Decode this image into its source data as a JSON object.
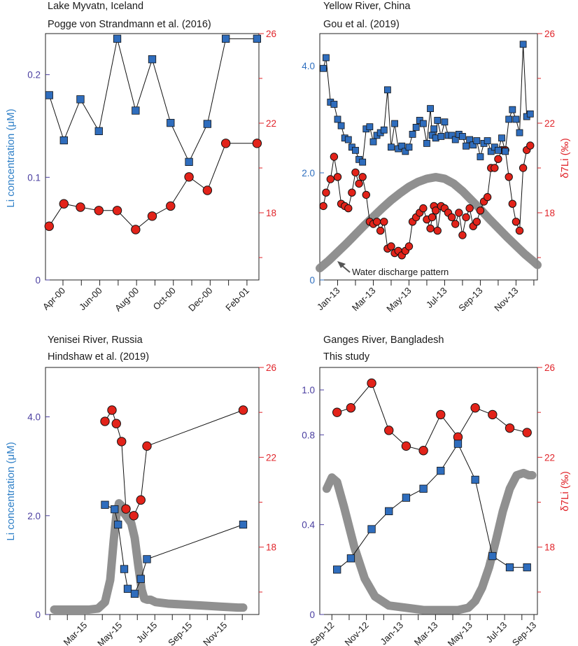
{
  "colors": {
    "li": "#2f6dbd",
    "d7li": "#e2231a",
    "discharge": "#8a8a8a",
    "leftTickPurple": "#4a3ea0",
    "leftTickBlue": "#2e6fbf",
    "rightAxis": "#e0242a"
  },
  "chart_data": [
    {
      "type": "line",
      "title": "Lake Myvatn, Iceland",
      "subtitle": "Pogge von Strandmann et al. (2016)",
      "ylabel_left": "Li concentration (μM)",
      "ylabel_right": "",
      "y_left_range": [
        0,
        0.24
      ],
      "y_left_ticks": [
        0,
        0.1,
        0.2
      ],
      "y_left_tick_labels": [
        "0",
        "0.1",
        "0.2"
      ],
      "y_left_tick_color": "purple",
      "y_right_range": [
        15.0,
        26.0
      ],
      "y_right_ticks": [
        18,
        22,
        26
      ],
      "y_right_tick_labels": [
        "18",
        "22",
        "26"
      ],
      "x_range": [
        0,
        11.6
      ],
      "x_ticks": [
        0.95,
        2.95,
        4.95,
        6.95,
        8.95,
        10.95
      ],
      "x_tick_labels": [
        "Apr-00",
        "Jun-00",
        "Aug-00",
        "Oct-00",
        "Dec-00",
        "Feb-01"
      ],
      "li": {
        "x": [
          0.2,
          1.0,
          1.9,
          2.9,
          3.9,
          4.9,
          5.8,
          6.8,
          7.8,
          8.8,
          9.8,
          11.5
        ],
        "y": [
          0.18,
          0.136,
          0.176,
          0.145,
          0.235,
          0.165,
          0.215,
          0.153,
          0.115,
          0.152,
          0.235,
          0.235
        ]
      },
      "d7li": {
        "x": [
          0.2,
          1.0,
          1.9,
          2.9,
          3.9,
          4.9,
          5.8,
          6.8,
          7.8,
          8.8,
          9.8,
          11.5
        ],
        "y": [
          17.4,
          18.4,
          18.25,
          18.1,
          18.1,
          17.25,
          17.85,
          18.3,
          19.6,
          19.0,
          21.1,
          21.1
        ]
      },
      "discharge": null,
      "annotation": ""
    },
    {
      "type": "line",
      "title": "Yellow River, China",
      "subtitle": "Gou et al. (2019)",
      "ylabel_left": "",
      "ylabel_right": "δ7Li (‰)",
      "y_left_range": [
        0,
        4.6
      ],
      "y_left_ticks": [
        0,
        2.0,
        4.0
      ],
      "y_left_tick_labels": [
        "0",
        "2.0",
        "4.0"
      ],
      "y_left_tick_color": "blue",
      "y_right_range": [
        15.0,
        26.0
      ],
      "y_right_ticks": [
        18,
        22,
        26
      ],
      "y_right_tick_labels": [
        "18",
        "22",
        "26"
      ],
      "x_range": [
        0,
        12.2
      ],
      "x_ticks": [
        1.0,
        3.0,
        5.0,
        7.0,
        9.0,
        11.0
      ],
      "x_tick_labels": [
        "Jan-13",
        "Mar-13",
        "May-13",
        "Jul-13",
        "Sep-13",
        "Nov-13"
      ],
      "li": {
        "x": [
          0.2,
          0.35,
          0.6,
          0.8,
          1.0,
          1.2,
          1.4,
          1.6,
          1.8,
          2.0,
          2.2,
          2.4,
          2.6,
          2.8,
          3.0,
          3.2,
          3.4,
          3.6,
          3.8,
          4.0,
          4.2,
          4.4,
          4.6,
          4.8,
          5.0,
          5.2,
          5.4,
          5.6,
          5.8,
          6.0,
          6.2,
          6.3,
          6.4,
          6.5,
          6.6,
          6.8,
          7.0,
          7.2,
          7.4,
          7.6,
          7.8,
          8.0,
          8.2,
          8.4,
          8.6,
          8.8,
          9.0,
          9.2,
          9.4,
          9.6,
          9.8,
          10.0,
          10.2,
          10.4,
          10.6,
          10.8,
          11.0,
          11.2,
          11.4,
          11.6,
          11.8
        ],
        "y": [
          3.95,
          4.15,
          3.32,
          3.28,
          3.0,
          2.88,
          2.65,
          2.62,
          2.48,
          2.42,
          2.25,
          2.2,
          2.82,
          2.86,
          2.58,
          2.7,
          2.75,
          2.8,
          3.55,
          2.48,
          2.92,
          2.45,
          2.5,
          2.4,
          2.48,
          2.72,
          2.85,
          2.98,
          2.92,
          2.55,
          3.2,
          2.7,
          2.82,
          2.65,
          2.98,
          2.68,
          2.95,
          2.7,
          2.7,
          2.62,
          2.72,
          2.68,
          2.5,
          2.62,
          2.52,
          2.6,
          2.3,
          2.55,
          2.6,
          2.4,
          2.48,
          2.42,
          2.65,
          2.4,
          3.0,
          3.18,
          3.0,
          2.75,
          4.4,
          3.05,
          3.1
        ]
      },
      "d7li": {
        "x": [
          0.2,
          0.35,
          0.6,
          0.8,
          1.0,
          1.2,
          1.4,
          1.6,
          1.8,
          2.0,
          2.2,
          2.4,
          2.6,
          2.8,
          3.0,
          3.2,
          3.4,
          3.6,
          3.8,
          4.0,
          4.2,
          4.4,
          4.6,
          4.8,
          5.0,
          5.2,
          5.4,
          5.6,
          5.8,
          6.0,
          6.2,
          6.3,
          6.4,
          6.5,
          6.6,
          6.8,
          7.0,
          7.2,
          7.4,
          7.6,
          7.8,
          8.0,
          8.2,
          8.4,
          8.6,
          8.8,
          9.0,
          9.2,
          9.4,
          9.6,
          9.8,
          10.0,
          10.2,
          10.4,
          10.6,
          10.8,
          11.0,
          11.2,
          11.4,
          11.6,
          11.8
        ],
        "y": [
          18.3,
          18.9,
          19.5,
          20.5,
          19.6,
          18.4,
          18.3,
          18.2,
          18.9,
          19.8,
          19.3,
          19.6,
          18.8,
          17.6,
          17.5,
          17.6,
          17.2,
          17.6,
          16.4,
          16.5,
          16.2,
          16.3,
          16.1,
          16.3,
          16.5,
          17.6,
          17.8,
          18.0,
          18.2,
          17.7,
          17.3,
          17.8,
          18.3,
          18.1,
          17.2,
          18.3,
          18.2,
          18.0,
          17.8,
          17.5,
          18.0,
          17.0,
          17.8,
          18.2,
          17.4,
          17.6,
          18.1,
          18.5,
          18.7,
          20.0,
          20.0,
          20.4,
          20.8,
          20.8,
          19.6,
          18.4,
          17.6,
          17.2,
          20.0,
          20.8,
          21.0
        ]
      },
      "discharge": {
        "x": [
          0.0,
          0.5,
          1.0,
          1.5,
          2.0,
          2.5,
          3.0,
          3.5,
          4.0,
          4.5,
          5.0,
          5.5,
          6.0,
          6.5,
          7.0,
          7.5,
          8.0,
          8.5,
          9.0,
          9.5,
          10.0,
          10.5,
          11.0,
          11.5,
          12.0,
          12.2
        ],
        "y": [
          0.22,
          0.36,
          0.52,
          0.68,
          0.85,
          1.02,
          1.18,
          1.34,
          1.49,
          1.62,
          1.74,
          1.83,
          1.89,
          1.92,
          1.89,
          1.8,
          1.66,
          1.49,
          1.32,
          1.14,
          0.97,
          0.8,
          0.64,
          0.48,
          0.34,
          0.28
        ]
      },
      "annotation": "Water discharge pattern"
    },
    {
      "type": "line",
      "title": "Yenisei River, Russia",
      "subtitle": "Hindshaw et al. (2019)",
      "ylabel_left": "Li concentration (μM)",
      "ylabel_right": "",
      "y_left_range": [
        0,
        5.0
      ],
      "y_left_ticks": [
        0,
        2.0,
        4.0
      ],
      "y_left_tick_labels": [
        "0",
        "2.0",
        "4.0"
      ],
      "y_left_tick_color": "purple",
      "y_right_range": [
        15.0,
        26.0
      ],
      "y_right_ticks": [
        18,
        22,
        26
      ],
      "y_right_tick_labels": [
        "18",
        "22",
        "26"
      ],
      "x_range": [
        0,
        12.2
      ],
      "x_ticks": [
        2.25,
        4.25,
        6.25,
        8.25,
        10.25
      ],
      "x_tick_labels": [
        "Mar-15",
        "May-15",
        "Jul-15",
        "Sep-15",
        "Nov-15"
      ],
      "li": {
        "x": [
          3.4,
          3.95,
          4.15,
          4.5,
          4.7,
          5.1,
          5.45,
          5.8,
          11.3
        ],
        "y": [
          2.22,
          2.13,
          1.82,
          0.92,
          0.52,
          0.42,
          0.72,
          1.12,
          1.82
        ]
      },
      "d7li": {
        "x": [
          3.4,
          3.8,
          4.05,
          4.35,
          4.6,
          5.05,
          5.45,
          5.8,
          11.3
        ],
        "y": [
          23.6,
          24.1,
          23.5,
          22.7,
          19.7,
          19.4,
          20.1,
          22.5,
          24.1
        ]
      },
      "discharge": {
        "x": [
          0.5,
          1.0,
          1.5,
          2.0,
          2.5,
          3.0,
          3.4,
          3.7,
          3.9,
          4.05,
          4.2,
          4.35,
          4.5,
          4.7,
          4.9,
          5.1,
          5.3,
          5.5,
          5.65,
          5.8,
          6.0,
          6.3,
          7.0,
          8.0,
          9.0,
          10.0,
          11.0,
          11.3
        ],
        "y": [
          0.1,
          0.1,
          0.1,
          0.1,
          0.1,
          0.12,
          0.25,
          0.7,
          1.5,
          2.0,
          2.25,
          2.2,
          2.05,
          1.95,
          1.85,
          1.55,
          1.0,
          0.5,
          0.32,
          0.3,
          0.3,
          0.25,
          0.22,
          0.2,
          0.18,
          0.16,
          0.14,
          0.14
        ]
      },
      "annotation": ""
    },
    {
      "type": "line",
      "title": "Ganges River, Bangladesh",
      "subtitle": "This study",
      "ylabel_left": "",
      "ylabel_right": "δ7Li (‰)",
      "y_left_range": [
        0,
        1.1
      ],
      "y_left_ticks": [
        0,
        0.4,
        0.8,
        1.0
      ],
      "y_left_tick_labels": [
        "0",
        "0.4",
        "0.8",
        "1.0"
      ],
      "y_left_tick_color": "purple",
      "y_right_range": [
        15.0,
        26.0
      ],
      "y_right_ticks": [
        18,
        22,
        26
      ],
      "y_right_tick_labels": [
        "18",
        "22",
        "26"
      ],
      "x_range": [
        0,
        12.6
      ],
      "x_ticks": [
        0.7,
        2.7,
        4.7,
        6.7,
        8.7,
        10.7,
        12.4
      ],
      "x_tick_labels": [
        "Sep-12",
        "Nov-12",
        "Jan-13",
        "Mar-13",
        "May-13",
        "Jul-13",
        "Sep-13"
      ],
      "li": {
        "x": [
          1.0,
          1.8,
          3.0,
          4.0,
          5.0,
          6.0,
          7.0,
          8.0,
          9.0,
          10.0,
          11.0,
          12.0
        ],
        "y": [
          0.2,
          0.25,
          0.38,
          0.46,
          0.52,
          0.56,
          0.64,
          0.76,
          0.6,
          0.26,
          0.21,
          0.21
        ]
      },
      "d7li": {
        "x": [
          1.0,
          1.8,
          3.0,
          4.0,
          5.0,
          6.0,
          7.0,
          8.0,
          9.0,
          10.0,
          11.0,
          12.0
        ],
        "y": [
          24.0,
          24.2,
          25.3,
          23.2,
          22.5,
          22.3,
          23.9,
          22.9,
          24.2,
          23.9,
          23.3,
          23.1
        ]
      },
      "discharge": {
        "x": [
          0.4,
          0.7,
          1.0,
          1.4,
          2.0,
          2.6,
          3.2,
          4.0,
          5.0,
          6.0,
          7.0,
          8.0,
          8.6,
          9.0,
          9.4,
          9.8,
          10.2,
          10.6,
          11.0,
          11.4,
          11.8,
          12.1,
          12.3
        ],
        "y": [
          0.56,
          0.61,
          0.59,
          0.48,
          0.3,
          0.16,
          0.08,
          0.04,
          0.03,
          0.02,
          0.02,
          0.02,
          0.03,
          0.06,
          0.12,
          0.21,
          0.33,
          0.46,
          0.56,
          0.62,
          0.63,
          0.62,
          0.62
        ]
      },
      "annotation": ""
    }
  ]
}
